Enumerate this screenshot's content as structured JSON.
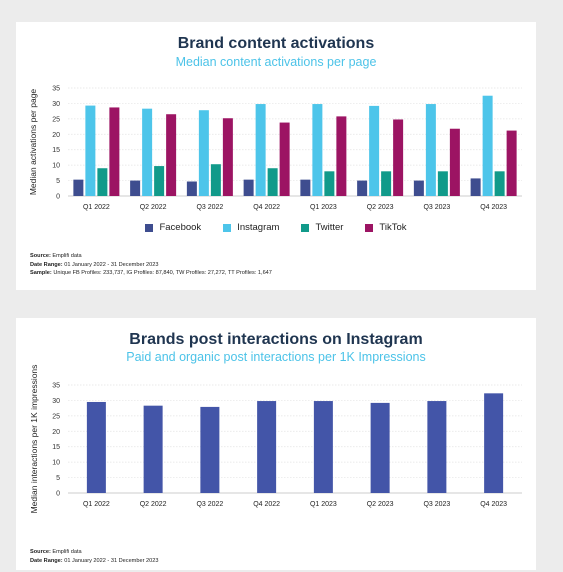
{
  "chart_data": [
    {
      "type": "bar",
      "title": "Brand content activations",
      "subtitle": "Median content activations per page",
      "ylabel": "Median activations per page",
      "xlabel": "",
      "ylim": [
        0,
        35
      ],
      "yticks": [
        0,
        5,
        10,
        15,
        20,
        25,
        30,
        35
      ],
      "grid": true,
      "legend_position": "bottom",
      "categories": [
        "Q1 2022",
        "Q2 2022",
        "Q3 2022",
        "Q4 2022",
        "Q1 2023",
        "Q2 2023",
        "Q3 2023",
        "Q4 2023"
      ],
      "series": [
        {
          "name": "Facebook",
          "color": "#3e4d8f",
          "values": [
            5.3,
            5.0,
            4.7,
            5.3,
            5.3,
            5.0,
            5.0,
            5.7
          ]
        },
        {
          "name": "Instagram",
          "color": "#4dc5ea",
          "values": [
            29.3,
            28.3,
            27.8,
            29.8,
            29.8,
            29.2,
            29.8,
            32.5
          ]
        },
        {
          "name": "Twitter",
          "color": "#119a8a",
          "values": [
            9.0,
            9.7,
            10.3,
            9.0,
            8.0,
            8.0,
            8.0,
            8.0
          ]
        },
        {
          "name": "TikTok",
          "color": "#9c1463",
          "values": [
            28.7,
            26.5,
            25.2,
            23.8,
            25.8,
            24.8,
            21.8,
            21.2
          ]
        }
      ],
      "notes": {
        "source_label": "Source:",
        "source_value": "Emplifi data",
        "range_label": "Date Range:",
        "range_value": "01 January 2022 - 31 December 2023",
        "sample_label": "Sample:",
        "sample_value": "Unique FB Profiles: 233,737, IG Profiles: 87,840, TW Profiles: 27,272, TT Profiles: 1,647"
      }
    },
    {
      "type": "bar",
      "title": "Brands post interactions on Instagram",
      "subtitle": "Paid and organic post interactions per 1K Impressions",
      "ylabel": "Median interactions per 1K impressions",
      "xlabel": "",
      "ylim": [
        0,
        35
      ],
      "yticks": [
        0,
        5,
        10,
        15,
        20,
        25,
        30,
        35
      ],
      "grid": true,
      "categories": [
        "Q1 2022",
        "Q2 2022",
        "Q3 2022",
        "Q4 2022",
        "Q1 2023",
        "Q2 2023",
        "Q3 2023",
        "Q4 2023"
      ],
      "series": [
        {
          "color": "#4355a8",
          "values": [
            29.5,
            28.3,
            27.9,
            29.8,
            29.8,
            29.2,
            29.8,
            32.3
          ]
        }
      ],
      "notes": {
        "source_label": "Source:",
        "source_value": "Emplifi data",
        "range_label": "Date Range:",
        "range_value": "01 January 2022 - 31 December 2023"
      }
    }
  ]
}
